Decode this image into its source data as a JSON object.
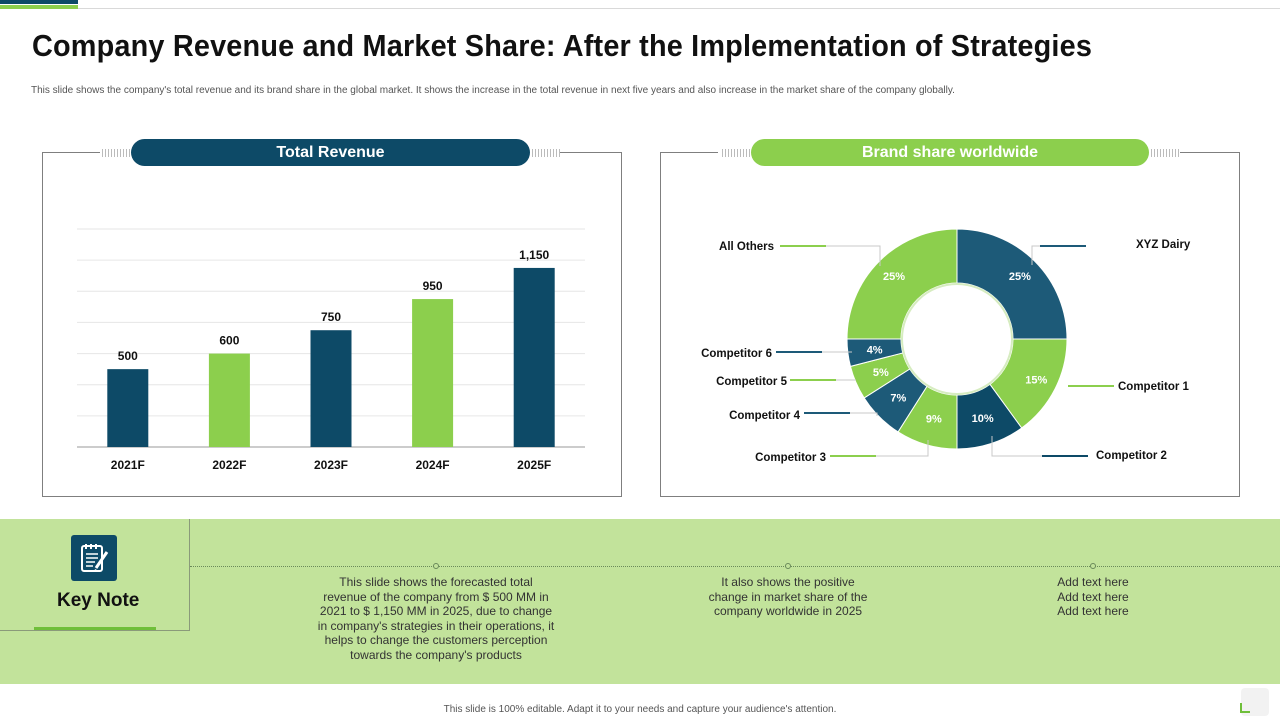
{
  "title": "Company Revenue and Market Share: After the Implementation of Strategies",
  "subtitle": "This slide shows the company's total revenue and its brand share in the global market. It shows the increase in the total revenue in next five years and also increase in the market share of the company globally.",
  "colors": {
    "navy": "#0d4a67",
    "green": "#8ccf4d",
    "band": "#c2e39b"
  },
  "chart_data": [
    {
      "type": "bar",
      "title": "Total Revenue",
      "categories": [
        "2021F",
        "2022F",
        "2023F",
        "2024F",
        "2025F"
      ],
      "values": [
        500,
        600,
        750,
        950,
        1150
      ],
      "labels": [
        "500",
        "600",
        "750",
        "950",
        "1,150"
      ],
      "bar_colors": [
        "#0d4a67",
        "#8ccf4d",
        "#0d4a67",
        "#8ccf4d",
        "#0d4a67"
      ],
      "ylim": [
        0,
        1400
      ],
      "grid": true
    },
    {
      "type": "pie",
      "title": "Brand share worldwide",
      "slices": [
        {
          "name": "XYZ Dairy",
          "value": 25,
          "label": "25%",
          "color": "#1d5a78"
        },
        {
          "name": "Competitor 1",
          "value": 15,
          "label": "15%",
          "color": "#8ccf4d"
        },
        {
          "name": "Competitor 2",
          "value": 10,
          "label": "10%",
          "color": "#0d4a67"
        },
        {
          "name": "Competitor 3",
          "value": 9,
          "label": "9%",
          "color": "#8ccf4d"
        },
        {
          "name": "Competitor 4",
          "value": 7,
          "label": "7%",
          "color": "#1d5a78"
        },
        {
          "name": "Competitor 5",
          "value": 5,
          "label": "5%",
          "color": "#8ccf4d"
        },
        {
          "name": "Competitor 6",
          "value": 4,
          "label": "4%",
          "color": "#1d5a78"
        },
        {
          "name": "All Others",
          "value": 25,
          "label": "25%",
          "color": "#8ccf4d"
        }
      ]
    }
  ],
  "keynote": {
    "label": "Key Note",
    "icon": "notepad-pencil-icon",
    "notes": [
      "This slide shows the forecasted total revenue of the company from $ 500 MM in 2021 to $ 1,150 MM in 2025, due to change in company's strategies in their operations, it helps to change the customers perception towards the company's products",
      "It also shows the positive change in market share of the company worldwide in 2025",
      "Add text here Add text here Add text here"
    ]
  },
  "footer": "This slide is 100% editable. Adapt it to your needs and capture your audience's attention."
}
